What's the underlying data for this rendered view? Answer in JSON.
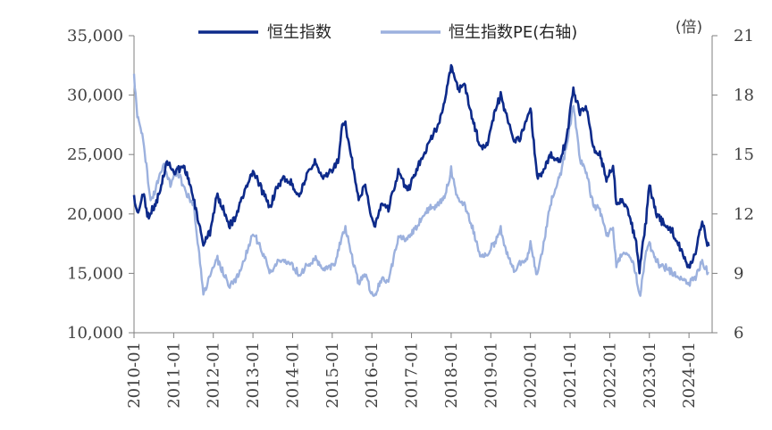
{
  "chart_data": {
    "type": "line",
    "title": "",
    "xlabel": "",
    "x_ticks": [
      "2010-01",
      "2011-01",
      "2012-01",
      "2013-01",
      "2014-01",
      "2015-01",
      "2016-01",
      "2017-01",
      "2018-01",
      "2019-01",
      "2020-01",
      "2021-01",
      "2022-01",
      "2023-01",
      "2024-01"
    ],
    "x_range": [
      "2010-01",
      "2024-07"
    ],
    "y_left": {
      "range": [
        10000,
        35000
      ],
      "ticks": [
        "10,000",
        "15,000",
        "20,000",
        "25,000",
        "30,000",
        "35,000"
      ]
    },
    "y_right": {
      "range": [
        6,
        21
      ],
      "ticks": [
        "6",
        "9",
        "12",
        "15",
        "18",
        "21"
      ],
      "unit": "(倍)"
    },
    "grid": false,
    "legend": "top",
    "series": [
      {
        "name": "恒生指数",
        "axis": "left",
        "color": "#0d2a8a",
        "points": [
          [
            "2010-01",
            21500
          ],
          [
            "2010-02",
            20000
          ],
          [
            "2010-04",
            21800
          ],
          [
            "2010-05",
            19800
          ],
          [
            "2010-07",
            20500
          ],
          [
            "2010-09",
            22000
          ],
          [
            "2010-11",
            24500
          ],
          [
            "2011-01",
            23500
          ],
          [
            "2011-04",
            24000
          ],
          [
            "2011-06",
            22500
          ],
          [
            "2011-08",
            20000
          ],
          [
            "2011-10",
            17500
          ],
          [
            "2011-12",
            18500
          ],
          [
            "2012-02",
            21500
          ],
          [
            "2012-04",
            20500
          ],
          [
            "2012-06",
            19000
          ],
          [
            "2012-08",
            20000
          ],
          [
            "2012-10",
            21500
          ],
          [
            "2013-01",
            23500
          ],
          [
            "2013-03",
            22500
          ],
          [
            "2013-06",
            20500
          ],
          [
            "2013-08",
            22000
          ],
          [
            "2013-10",
            23000
          ],
          [
            "2014-01",
            22500
          ],
          [
            "2014-03",
            21500
          ],
          [
            "2014-05",
            23000
          ],
          [
            "2014-08",
            24500
          ],
          [
            "2014-10",
            23000
          ],
          [
            "2014-12",
            23500
          ],
          [
            "2015-03",
            24500
          ],
          [
            "2015-04",
            27500
          ],
          [
            "2015-05",
            27500
          ],
          [
            "2015-07",
            24500
          ],
          [
            "2015-09",
            21000
          ],
          [
            "2015-11",
            22500
          ],
          [
            "2016-01",
            19500
          ],
          [
            "2016-02",
            19000
          ],
          [
            "2016-04",
            21000
          ],
          [
            "2016-06",
            20500
          ],
          [
            "2016-09",
            23500
          ],
          [
            "2016-12",
            22000
          ],
          [
            "2017-03",
            24000
          ],
          [
            "2017-06",
            25800
          ],
          [
            "2017-09",
            27500
          ],
          [
            "2017-11",
            29500
          ],
          [
            "2018-01",
            32500
          ],
          [
            "2018-03",
            30500
          ],
          [
            "2018-05",
            31000
          ],
          [
            "2018-07",
            28500
          ],
          [
            "2018-10",
            25500
          ],
          [
            "2018-12",
            26000
          ],
          [
            "2019-02",
            28500
          ],
          [
            "2019-04",
            30000
          ],
          [
            "2019-06",
            28000
          ],
          [
            "2019-08",
            26000
          ],
          [
            "2019-10",
            26500
          ],
          [
            "2019-12",
            28000
          ],
          [
            "2020-01",
            29000
          ],
          [
            "2020-03",
            23000
          ],
          [
            "2020-05",
            23500
          ],
          [
            "2020-07",
            25000
          ],
          [
            "2020-10",
            24500
          ],
          [
            "2020-12",
            26500
          ],
          [
            "2021-02",
            30500
          ],
          [
            "2021-04",
            28500
          ],
          [
            "2021-06",
            29000
          ],
          [
            "2021-08",
            25500
          ],
          [
            "2021-10",
            25000
          ],
          [
            "2021-12",
            23000
          ],
          [
            "2022-02",
            24000
          ],
          [
            "2022-03",
            21000
          ],
          [
            "2022-05",
            21000
          ],
          [
            "2022-07",
            20000
          ],
          [
            "2022-09",
            17500
          ],
          [
            "2022-10",
            15200
          ],
          [
            "2022-12",
            19500
          ],
          [
            "2023-01",
            22500
          ],
          [
            "2023-03",
            20000
          ],
          [
            "2023-06",
            19000
          ],
          [
            "2023-08",
            18500
          ],
          [
            "2023-10",
            17300
          ],
          [
            "2024-01",
            15500
          ],
          [
            "2024-03",
            16800
          ],
          [
            "2024-05",
            19500
          ],
          [
            "2024-06",
            18000
          ],
          [
            "2024-07",
            17300
          ]
        ]
      },
      {
        "name": "恒生指数PE(右轴)",
        "axis": "right",
        "color": "#9cb1de",
        "points": [
          [
            "2010-01",
            19
          ],
          [
            "2010-02",
            17
          ],
          [
            "2010-04",
            15.5
          ],
          [
            "2010-06",
            12.5
          ],
          [
            "2010-08",
            13.5
          ],
          [
            "2010-10",
            14.5
          ],
          [
            "2010-12",
            13.5
          ],
          [
            "2011-02",
            14.2
          ],
          [
            "2011-05",
            13.0
          ],
          [
            "2011-07",
            12.5
          ],
          [
            "2011-09",
            9.5
          ],
          [
            "2011-10",
            8
          ],
          [
            "2011-12",
            8.8
          ],
          [
            "2012-02",
            9.8
          ],
          [
            "2012-04",
            9.0
          ],
          [
            "2012-06",
            8.3
          ],
          [
            "2012-08",
            8.7
          ],
          [
            "2012-10",
            9.5
          ],
          [
            "2013-01",
            11
          ],
          [
            "2013-03",
            10.5
          ],
          [
            "2013-06",
            9.0
          ],
          [
            "2013-08",
            9.5
          ],
          [
            "2013-10",
            9.7
          ],
          [
            "2014-01",
            9.4
          ],
          [
            "2014-03",
            8.9
          ],
          [
            "2014-05",
            9.3
          ],
          [
            "2014-08",
            9.8
          ],
          [
            "2014-10",
            9.2
          ],
          [
            "2014-12",
            9.3
          ],
          [
            "2015-02",
            9.5
          ],
          [
            "2015-04",
            11
          ],
          [
            "2015-05",
            11.2
          ],
          [
            "2015-07",
            9.8
          ],
          [
            "2015-09",
            8.5
          ],
          [
            "2015-11",
            9.0
          ],
          [
            "2016-01",
            8.0
          ],
          [
            "2016-02",
            7.8
          ],
          [
            "2016-04",
            8.8
          ],
          [
            "2016-06",
            8.6
          ],
          [
            "2016-09",
            10.8
          ],
          [
            "2016-12",
            10.8
          ],
          [
            "2017-03",
            11.5
          ],
          [
            "2017-06",
            12.2
          ],
          [
            "2017-09",
            12.5
          ],
          [
            "2017-11",
            12.8
          ],
          [
            "2018-01",
            14.2
          ],
          [
            "2018-03",
            12.8
          ],
          [
            "2018-05",
            12.5
          ],
          [
            "2018-07",
            11.5
          ],
          [
            "2018-10",
            9.8
          ],
          [
            "2018-12",
            10.0
          ],
          [
            "2019-02",
            10.5
          ],
          [
            "2019-04",
            11.2
          ],
          [
            "2019-06",
            10.0
          ],
          [
            "2019-08",
            9.2
          ],
          [
            "2019-10",
            9.5
          ],
          [
            "2019-12",
            9.8
          ],
          [
            "2020-01",
            10.5
          ],
          [
            "2020-03",
            8.8
          ],
          [
            "2020-05",
            10.5
          ],
          [
            "2020-07",
            12.5
          ],
          [
            "2020-10",
            14.0
          ],
          [
            "2020-12",
            15.5
          ],
          [
            "2021-02",
            17.5
          ],
          [
            "2021-04",
            14.8
          ],
          [
            "2021-06",
            14.0
          ],
          [
            "2021-08",
            12.5
          ],
          [
            "2021-10",
            12.2
          ],
          [
            "2021-12",
            11.0
          ],
          [
            "2022-02",
            11.2
          ],
          [
            "2022-03",
            9.5
          ],
          [
            "2022-05",
            10.0
          ],
          [
            "2022-07",
            10.0
          ],
          [
            "2022-09",
            9.0
          ],
          [
            "2022-10",
            7.8
          ],
          [
            "2022-12",
            10.0
          ],
          [
            "2023-01",
            10.5
          ],
          [
            "2023-03",
            9.6
          ],
          [
            "2023-06",
            9.3
          ],
          [
            "2023-08",
            9.0
          ],
          [
            "2023-10",
            8.8
          ],
          [
            "2024-01",
            8.5
          ],
          [
            "2024-03",
            8.8
          ],
          [
            "2024-05",
            9.6
          ],
          [
            "2024-06",
            9.2
          ],
          [
            "2024-07",
            9.0
          ]
        ]
      }
    ]
  }
}
